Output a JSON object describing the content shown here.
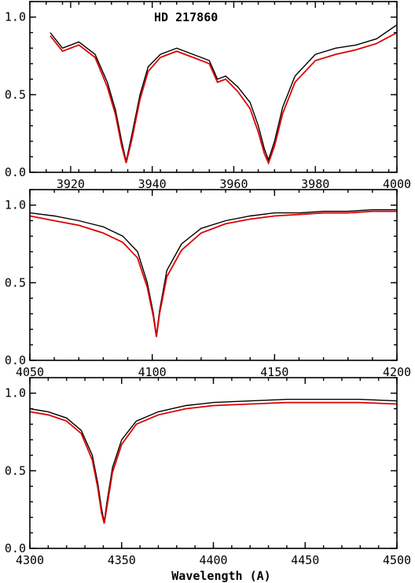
{
  "chart_data": [
    {
      "type": "line",
      "title": "HD 217860",
      "xlim": [
        3910,
        4000
      ],
      "ylim": [
        0,
        1.1
      ],
      "xticks": [
        3920,
        3940,
        3960,
        3980,
        4000
      ],
      "xtick_labels": [
        "3920",
        "3940",
        "3960",
        "3980",
        "4000"
      ],
      "yticks": [
        0,
        0.5,
        1.0
      ],
      "ytick_labels": [
        "0.0",
        "0.5",
        "1.0"
      ],
      "series": [
        {
          "color": "#000000",
          "x": [
            3915,
            3918,
            3922,
            3926,
            3929,
            3931,
            3932.5,
            3933.6,
            3935,
            3937,
            3939,
            3942,
            3946,
            3950,
            3954,
            3956,
            3958,
            3961,
            3964,
            3966,
            3967.5,
            3968.5,
            3970,
            3972,
            3975,
            3980,
            3985,
            3990,
            3995,
            4000
          ],
          "y": [
            0.9,
            0.8,
            0.84,
            0.76,
            0.58,
            0.4,
            0.2,
            0.07,
            0.24,
            0.5,
            0.68,
            0.76,
            0.8,
            0.76,
            0.72,
            0.6,
            0.62,
            0.55,
            0.45,
            0.3,
            0.15,
            0.08,
            0.2,
            0.42,
            0.62,
            0.76,
            0.8,
            0.82,
            0.86,
            0.95
          ]
        },
        {
          "color": "#dd0000",
          "x": [
            3915,
            3918,
            3922,
            3926,
            3929,
            3931,
            3932.5,
            3933.6,
            3935,
            3937,
            3939,
            3942,
            3946,
            3950,
            3954,
            3956,
            3958,
            3961,
            3964,
            3966,
            3967.5,
            3968.5,
            3970,
            3972,
            3975,
            3980,
            3985,
            3990,
            3995,
            4000
          ],
          "y": [
            0.88,
            0.78,
            0.82,
            0.74,
            0.55,
            0.37,
            0.17,
            0.06,
            0.21,
            0.47,
            0.65,
            0.74,
            0.78,
            0.74,
            0.7,
            0.58,
            0.6,
            0.52,
            0.41,
            0.26,
            0.12,
            0.06,
            0.17,
            0.38,
            0.58,
            0.72,
            0.76,
            0.79,
            0.83,
            0.9
          ]
        }
      ]
    },
    {
      "type": "line",
      "xlim": [
        4050,
        4200
      ],
      "ylim": [
        0,
        1.1
      ],
      "xticks": [
        4050,
        4100,
        4150,
        4200
      ],
      "xtick_labels": [
        "4050",
        "4100",
        "4150",
        "4200"
      ],
      "yticks": [
        0,
        0.5,
        1.0
      ],
      "ytick_labels": [
        "0.0",
        "0.5",
        "1.0"
      ],
      "series": [
        {
          "color": "#000000",
          "x": [
            4050,
            4060,
            4070,
            4080,
            4088,
            4094,
            4098,
            4100.5,
            4101.7,
            4103,
            4106,
            4112,
            4120,
            4130,
            4140,
            4150,
            4160,
            4170,
            4180,
            4190,
            4200
          ],
          "y": [
            0.95,
            0.93,
            0.9,
            0.86,
            0.8,
            0.7,
            0.5,
            0.3,
            0.16,
            0.32,
            0.58,
            0.75,
            0.85,
            0.9,
            0.93,
            0.95,
            0.95,
            0.96,
            0.96,
            0.97,
            0.97
          ]
        },
        {
          "color": "#dd0000",
          "x": [
            4050,
            4060,
            4070,
            4080,
            4088,
            4094,
            4098,
            4100.5,
            4101.7,
            4103,
            4106,
            4112,
            4120,
            4130,
            4140,
            4150,
            4160,
            4170,
            4180,
            4190,
            4200
          ],
          "y": [
            0.93,
            0.9,
            0.87,
            0.82,
            0.76,
            0.66,
            0.47,
            0.28,
            0.15,
            0.3,
            0.54,
            0.71,
            0.82,
            0.88,
            0.91,
            0.93,
            0.94,
            0.95,
            0.95,
            0.96,
            0.96
          ]
        }
      ]
    },
    {
      "type": "line",
      "xlim": [
        4300,
        4500
      ],
      "ylim": [
        0,
        1.1
      ],
      "xticks": [
        4300,
        4350,
        4400,
        4450,
        4500
      ],
      "xtick_labels": [
        "4300",
        "4350",
        "4400",
        "4450",
        "4500"
      ],
      "yticks": [
        0,
        0.5,
        1.0
      ],
      "ytick_labels": [
        "0.0",
        "0.5",
        "1.0"
      ],
      "xlabel": "Wavelength (A)",
      "series": [
        {
          "color": "#000000",
          "x": [
            4300,
            4310,
            4320,
            4328,
            4334,
            4337,
            4339,
            4340.5,
            4342,
            4345,
            4350,
            4358,
            4370,
            4385,
            4400,
            4420,
            4440,
            4460,
            4480,
            4500
          ],
          "y": [
            0.9,
            0.88,
            0.84,
            0.76,
            0.6,
            0.42,
            0.26,
            0.17,
            0.3,
            0.52,
            0.7,
            0.82,
            0.88,
            0.92,
            0.94,
            0.95,
            0.96,
            0.96,
            0.96,
            0.95
          ]
        },
        {
          "color": "#dd0000",
          "x": [
            4300,
            4310,
            4320,
            4328,
            4334,
            4337,
            4339,
            4340.5,
            4342,
            4345,
            4350,
            4358,
            4370,
            4385,
            4400,
            4420,
            4440,
            4460,
            4480,
            4500
          ],
          "y": [
            0.88,
            0.86,
            0.82,
            0.74,
            0.57,
            0.39,
            0.23,
            0.16,
            0.27,
            0.49,
            0.67,
            0.8,
            0.86,
            0.9,
            0.92,
            0.93,
            0.94,
            0.94,
            0.94,
            0.93
          ]
        }
      ]
    }
  ]
}
